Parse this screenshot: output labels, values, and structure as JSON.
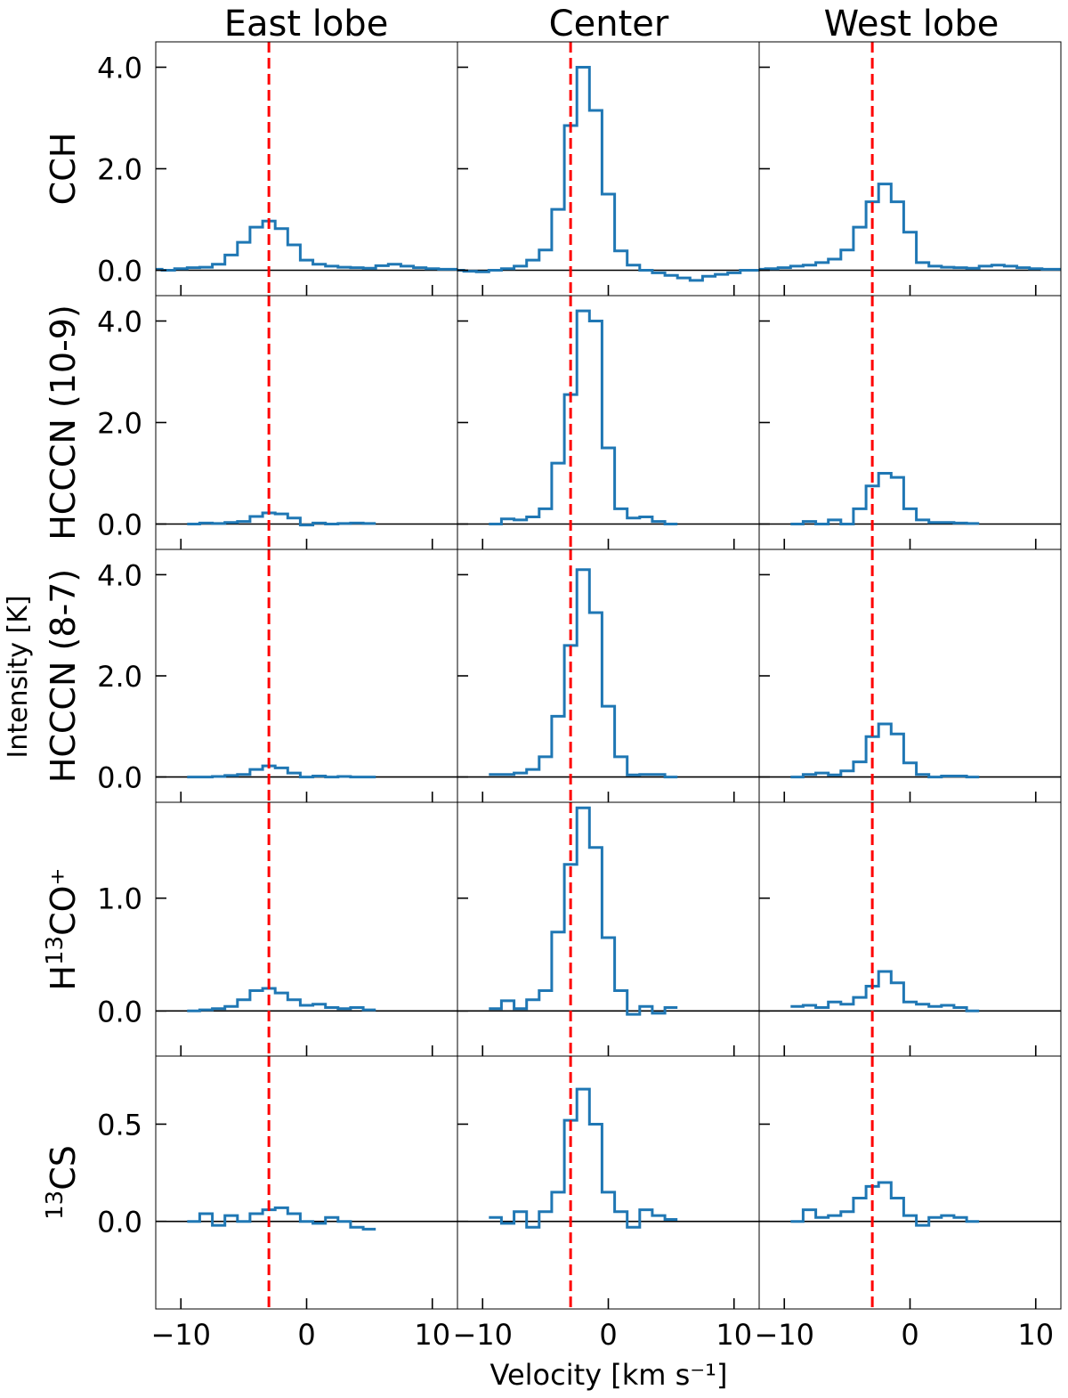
{
  "figure": {
    "column_titles": [
      "East lobe",
      "Center",
      "West lobe"
    ],
    "row_labels": [
      "CCH",
      "HCCCN (10-9)",
      "HCCCN (8-7)",
      "H13CO+",
      "13CS"
    ],
    "row_label_parts": [
      {
        "pre": "",
        "sup": "",
        "post": "CCH"
      },
      {
        "pre": "HCCCN (10-9)",
        "sup": "",
        "post": ""
      },
      {
        "pre": "HCCCN (8-7)",
        "sup": "",
        "post": ""
      },
      {
        "pre": "H",
        "sup": "13",
        "post": "CO⁺"
      },
      {
        "pre": "",
        "sup": "13",
        "post": "CS"
      }
    ],
    "ylabel": "Intensity [K]",
    "xlabel": "Velocity [km s⁻¹]",
    "colors": {
      "spectrum": "#1f77b4",
      "systemic": "#ff0000",
      "baseline": "#000000"
    }
  },
  "chart_data": {
    "type": "line",
    "step": true,
    "xlim": [
      -12,
      12
    ],
    "x_ticks": [
      -10,
      0,
      10
    ],
    "x_tick_labels": [
      "−10",
      "0",
      "10"
    ],
    "systemic_velocity": -3.0,
    "channel_width": 1.0,
    "rows": [
      {
        "label": "CCH",
        "ylim": [
          -0.5,
          4.5
        ],
        "y_ticks": [
          0.0,
          2.0,
          4.0
        ],
        "y_tick_labels": [
          "0.0",
          "2.0",
          "4.0"
        ],
        "panels": [
          {
            "title": "East lobe",
            "x": [
              -13,
              -12,
              -11,
              -10,
              -9,
              -8,
              -7,
              -6,
              -5,
              -4,
              -3,
              -2,
              -1,
              0,
              1,
              2,
              3,
              4,
              5,
              6,
              7,
              8,
              9,
              10,
              11,
              12,
              13
            ],
            "y": [
              0.02,
              0.02,
              0.0,
              0.03,
              0.05,
              0.06,
              0.12,
              0.3,
              0.55,
              0.85,
              0.97,
              0.82,
              0.5,
              0.2,
              0.12,
              0.08,
              0.06,
              0.05,
              0.04,
              0.09,
              0.12,
              0.08,
              0.05,
              0.03,
              0.02,
              0.02,
              0.02
            ]
          },
          {
            "title": "Center",
            "x": [
              -13,
              -12,
              -11,
              -10,
              -9,
              -8,
              -7,
              -6,
              -5,
              -4,
              -3,
              -2,
              -1,
              0,
              1,
              2,
              3,
              4,
              5,
              6,
              7,
              8,
              9,
              10,
              11,
              12,
              13
            ],
            "y": [
              0.0,
              0.0,
              -0.02,
              -0.03,
              0.0,
              0.03,
              0.08,
              0.2,
              0.4,
              1.2,
              2.85,
              4.0,
              3.15,
              1.5,
              0.38,
              0.1,
              0.0,
              -0.05,
              -0.1,
              -0.15,
              -0.2,
              -0.12,
              -0.08,
              -0.05,
              0.0,
              0.0,
              0.0
            ]
          },
          {
            "title": "West lobe",
            "x": [
              -13,
              -12,
              -11,
              -10,
              -9,
              -8,
              -7,
              -6,
              -5,
              -4,
              -3,
              -2,
              -1,
              0,
              1,
              2,
              3,
              4,
              5,
              6,
              7,
              8,
              9,
              10,
              11,
              12,
              13
            ],
            "y": [
              0.02,
              0.02,
              0.03,
              0.05,
              0.08,
              0.1,
              0.15,
              0.22,
              0.4,
              0.85,
              1.35,
              1.7,
              1.35,
              0.75,
              0.15,
              0.08,
              0.06,
              0.05,
              0.04,
              0.08,
              0.1,
              0.08,
              0.05,
              0.03,
              0.02,
              0.02,
              0.02
            ]
          }
        ]
      },
      {
        "label": "HCCCN (10-9)",
        "ylim": [
          -0.5,
          4.5
        ],
        "y_ticks": [
          0.0,
          2.0,
          4.0
        ],
        "y_tick_labels": [
          "0.0",
          "2.0",
          "4.0"
        ],
        "panels": [
          {
            "title": "East lobe",
            "x": [
              -9,
              -8,
              -7,
              -6,
              -5,
              -4,
              -3,
              -2,
              -1,
              0,
              1,
              2,
              3,
              4,
              5
            ],
            "y": [
              0.0,
              0.02,
              0.01,
              0.03,
              0.05,
              0.15,
              0.22,
              0.2,
              0.12,
              -0.02,
              0.02,
              0.0,
              0.01,
              0.02,
              0.01
            ]
          },
          {
            "title": "Center",
            "x": [
              -9,
              -8,
              -7,
              -6,
              -5,
              -4,
              -3,
              -2,
              -1,
              0,
              1,
              2,
              3,
              4,
              5
            ],
            "y": [
              0.0,
              0.1,
              0.08,
              0.14,
              0.3,
              1.2,
              2.55,
              4.2,
              4.0,
              1.5,
              0.3,
              0.12,
              0.14,
              0.05,
              0.0
            ]
          },
          {
            "title": "West lobe",
            "x": [
              -9,
              -8,
              -7,
              -6,
              -5,
              -4,
              -3,
              -2,
              -1,
              0,
              1,
              2,
              3,
              4,
              5
            ],
            "y": [
              0.0,
              0.05,
              0.0,
              0.08,
              0.0,
              0.3,
              0.75,
              1.0,
              0.92,
              0.3,
              0.08,
              0.03,
              0.03,
              0.02,
              0.01
            ]
          }
        ]
      },
      {
        "label": "HCCCN (8-7)",
        "ylim": [
          -0.5,
          4.5
        ],
        "y_ticks": [
          0.0,
          2.0,
          4.0
        ],
        "y_tick_labels": [
          "0.0",
          "2.0",
          "4.0"
        ],
        "panels": [
          {
            "title": "East lobe",
            "x": [
              -9,
              -8,
              -7,
              -6,
              -5,
              -4,
              -3,
              -2,
              -1,
              0,
              1,
              2,
              3,
              4,
              5
            ],
            "y": [
              0.0,
              0.0,
              0.01,
              0.03,
              0.05,
              0.15,
              0.22,
              0.18,
              0.08,
              0.0,
              0.02,
              0.0,
              0.01,
              0.0,
              0.0
            ]
          },
          {
            "title": "Center",
            "x": [
              -9,
              -8,
              -7,
              -6,
              -5,
              -4,
              -3,
              -2,
              -1,
              0,
              1,
              2,
              3,
              4,
              5
            ],
            "y": [
              0.05,
              0.05,
              0.08,
              0.15,
              0.4,
              1.2,
              2.6,
              4.1,
              3.25,
              1.4,
              0.4,
              0.04,
              0.05,
              0.05,
              0.0
            ]
          },
          {
            "title": "West lobe",
            "x": [
              -9,
              -8,
              -7,
              -6,
              -5,
              -4,
              -3,
              -2,
              -1,
              0,
              1,
              2,
              3,
              4,
              5
            ],
            "y": [
              0.0,
              0.05,
              0.08,
              0.04,
              0.12,
              0.3,
              0.8,
              1.05,
              0.85,
              0.28,
              0.05,
              0.0,
              0.02,
              0.02,
              0.0
            ]
          }
        ]
      },
      {
        "label": "H13CO+",
        "ylim": [
          -0.4,
          1.85
        ],
        "y_ticks": [
          0.0,
          1.0
        ],
        "y_tick_labels": [
          "0.0",
          "1.0"
        ],
        "panels": [
          {
            "title": "East lobe",
            "x": [
              -9,
              -8,
              -7,
              -6,
              -5,
              -4,
              -3,
              -2,
              -1,
              0,
              1,
              2,
              3,
              4,
              5
            ],
            "y": [
              0.0,
              0.01,
              0.02,
              0.04,
              0.1,
              0.18,
              0.2,
              0.16,
              0.1,
              0.05,
              0.06,
              0.03,
              0.02,
              0.03,
              0.01
            ]
          },
          {
            "title": "Center",
            "x": [
              -9,
              -8,
              -7,
              -6,
              -5,
              -4,
              -3,
              -2,
              -1,
              0,
              1,
              2,
              3,
              4,
              5
            ],
            "y": [
              0.02,
              0.09,
              0.02,
              0.1,
              0.18,
              0.7,
              1.3,
              1.8,
              1.45,
              0.65,
              0.18,
              -0.03,
              0.04,
              -0.02,
              0.03
            ]
          },
          {
            "title": "West lobe",
            "x": [
              -9,
              -8,
              -7,
              -6,
              -5,
              -4,
              -3,
              -2,
              -1,
              0,
              1,
              2,
              3,
              4,
              5
            ],
            "y": [
              0.04,
              0.05,
              0.03,
              0.08,
              0.06,
              0.12,
              0.22,
              0.35,
              0.25,
              0.08,
              0.06,
              0.04,
              0.05,
              0.03,
              0.0
            ]
          }
        ]
      },
      {
        "label": "13CS",
        "ylim": [
          -0.45,
          0.85
        ],
        "y_ticks": [
          0.0,
          0.5
        ],
        "y_tick_labels": [
          "0.0",
          "0.5"
        ],
        "panels": [
          {
            "title": "East lobe",
            "x": [
              -9,
              -8,
              -7,
              -6,
              -5,
              -4,
              -3,
              -2,
              -1,
              0,
              1,
              2,
              3,
              4,
              5
            ],
            "y": [
              0.0,
              0.04,
              -0.02,
              0.03,
              0.0,
              0.04,
              0.06,
              0.07,
              0.04,
              0.0,
              -0.01,
              0.02,
              0.0,
              -0.03,
              -0.04
            ]
          },
          {
            "title": "Center",
            "x": [
              -9,
              -8,
              -7,
              -6,
              -5,
              -4,
              -3,
              -2,
              -1,
              0,
              1,
              2,
              3,
              4,
              5
            ],
            "y": [
              0.02,
              -0.01,
              0.05,
              -0.03,
              0.05,
              0.15,
              0.52,
              0.68,
              0.5,
              0.15,
              0.05,
              -0.03,
              0.06,
              0.03,
              0.01
            ]
          },
          {
            "title": "West lobe",
            "x": [
              -9,
              -8,
              -7,
              -6,
              -5,
              -4,
              -3,
              -2,
              -1,
              0,
              1,
              2,
              3,
              4,
              5
            ],
            "y": [
              0.0,
              0.06,
              0.02,
              0.03,
              0.05,
              0.12,
              0.18,
              0.2,
              0.12,
              0.03,
              -0.02,
              0.02,
              0.03,
              0.02,
              0.0
            ]
          }
        ]
      }
    ]
  }
}
